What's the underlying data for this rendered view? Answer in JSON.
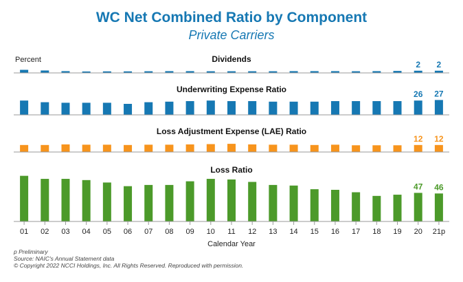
{
  "title": "WC Net Combined Ratio by Component",
  "subtitle": "Private Carriers",
  "chart_data": {
    "type": "bar",
    "ylabel": "Percent",
    "xlabel": "Calendar Year",
    "categories": [
      "01",
      "02",
      "03",
      "04",
      "05",
      "06",
      "07",
      "08",
      "09",
      "10",
      "11",
      "12",
      "13",
      "14",
      "15",
      "16",
      "17",
      "18",
      "19",
      "20",
      "21p"
    ],
    "panels": [
      {
        "name": "Dividends",
        "color": "#1678b3",
        "values": [
          2.8,
          2.2,
          1.6,
          1.3,
          1.4,
          1.4,
          1.5,
          1.6,
          1.6,
          1.5,
          1.5,
          1.5,
          1.5,
          1.6,
          1.6,
          1.6,
          1.5,
          1.6,
          1.8,
          2,
          2
        ],
        "labels": {
          "20": "2",
          "21p": "2"
        }
      },
      {
        "name": "Underwriting Expense Ratio",
        "color": "#1678b3",
        "values": [
          26,
          23,
          22,
          22,
          22,
          20,
          23,
          24,
          25,
          26,
          25,
          25,
          24,
          24,
          24,
          25,
          25,
          25,
          25,
          26,
          27
        ],
        "labels": {
          "20": "26",
          "21p": "27"
        }
      },
      {
        "name": "Loss Adjustment Expense (LAE) Ratio",
        "color": "#f7941d",
        "values": [
          12,
          12,
          13,
          12.5,
          12.5,
          12,
          12.5,
          12.5,
          13,
          13.5,
          14,
          13,
          12.5,
          12.5,
          12,
          12.5,
          11.5,
          11.5,
          11.5,
          12,
          12
        ],
        "labels": {
          "20": "12",
          "21p": "12"
        }
      },
      {
        "name": "Loss Ratio",
        "color": "#4c9a2a",
        "values": [
          75,
          70,
          70,
          68,
          64,
          58,
          60,
          60,
          66,
          70,
          69,
          65,
          60,
          59,
          53,
          52,
          48,
          42,
          44,
          47,
          46
        ],
        "labels": {
          "20": "47",
          "21p": "46"
        }
      }
    ]
  },
  "footnotes": [
    "p Preliminary",
    "Source: NAIC's Annual Statement data",
    "© Copyright 2022 NCCI Holdings, Inc. All Rights Reserved. Reproduced with permission."
  ]
}
